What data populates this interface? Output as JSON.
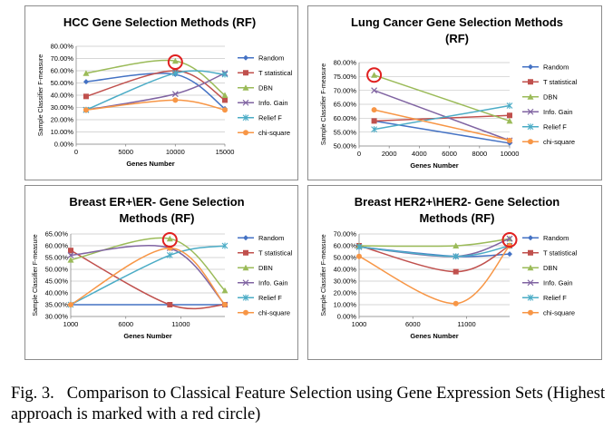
{
  "caption": {
    "label": "Fig. 3.",
    "text": "Comparison to Classical Feature Selection using Gene Expression Sets (Highest approach is marked with a red circle)"
  },
  "colors": {
    "Random": "#4472c4",
    "T statistical": "#c0504d",
    "DBN": "#9bbb59",
    "Info. Gain": "#8064a2",
    "Relief F": "#4bacc6",
    "chi-square": "#f79646",
    "highlight": "#e02020"
  },
  "chart_data": [
    {
      "type": "line",
      "title": "HCC Gene Selection Methods (RF)",
      "xlabel": "Genes Number",
      "ylabel": "Sample Classifier F-measure",
      "xlim": [
        0,
        15000
      ],
      "xticks": [
        0,
        5000,
        10000,
        15000
      ],
      "ylim": [
        0,
        80
      ],
      "yticks": [
        0,
        10,
        20,
        30,
        40,
        50,
        60,
        70,
        80
      ],
      "ytick_format": "percent",
      "x": [
        1000,
        10000,
        15000
      ],
      "series": [
        {
          "name": "Random",
          "marker": "diamond",
          "values": [
            51,
            57,
            29
          ]
        },
        {
          "name": "T statistical",
          "marker": "square",
          "values": [
            39,
            60,
            36
          ]
        },
        {
          "name": "DBN",
          "marker": "triangle",
          "values": [
            58,
            68,
            40
          ]
        },
        {
          "name": "Info. Gain",
          "marker": "x",
          "values": [
            28,
            41,
            58
          ]
        },
        {
          "name": "Relief F",
          "marker": "star",
          "values": [
            28,
            58,
            57
          ]
        },
        {
          "name": "chi-square",
          "marker": "circle",
          "values": [
            28,
            36,
            28
          ]
        }
      ],
      "highlight": {
        "x": 10000,
        "y": 67
      },
      "legend": "right"
    },
    {
      "type": "line",
      "title": "Lung Cancer Gene Selection Methods (RF)",
      "xlabel": "Genes Number",
      "ylabel": "Sample Classifier F-measure",
      "xlim": [
        0,
        10000
      ],
      "xticks": [
        0,
        2000,
        4000,
        6000,
        8000,
        10000
      ],
      "ylim": [
        50,
        80
      ],
      "yticks": [
        50,
        55,
        60,
        65,
        70,
        75,
        80
      ],
      "ytick_format": "percent",
      "x": [
        1000,
        10000
      ],
      "series": [
        {
          "name": "Random",
          "marker": "diamond",
          "values": [
            59,
            51
          ]
        },
        {
          "name": "T statistical",
          "marker": "square",
          "values": [
            59,
            61
          ]
        },
        {
          "name": "DBN",
          "marker": "triangle",
          "values": [
            75.5,
            59
          ]
        },
        {
          "name": "Info. Gain",
          "marker": "x",
          "values": [
            70,
            52
          ]
        },
        {
          "name": "Relief F",
          "marker": "star",
          "values": [
            56,
            64.5
          ]
        },
        {
          "name": "chi-square",
          "marker": "circle",
          "values": [
            63,
            52
          ]
        }
      ],
      "highlight": {
        "x": 1000,
        "y": 75.5
      },
      "legend": "right"
    },
    {
      "type": "line",
      "title": "Breast ER+\\ER- Gene Selection Methods (RF)",
      "xlabel": "Genes Number",
      "ylabel": "Sample Classifier F-measure",
      "xlim": [
        1000,
        15000
      ],
      "xticks": [
        1000,
        6000,
        11000
      ],
      "ylim": [
        30,
        65
      ],
      "yticks": [
        30,
        35,
        40,
        45,
        50,
        55,
        60,
        65
      ],
      "ytick_format": "percent",
      "x": [
        1000,
        10000,
        15000
      ],
      "series": [
        {
          "name": "Random",
          "marker": "diamond",
          "values": [
            35,
            35,
            35
          ]
        },
        {
          "name": "T statistical",
          "marker": "square",
          "values": [
            58,
            35,
            35
          ]
        },
        {
          "name": "DBN",
          "marker": "triangle",
          "values": [
            54,
            63,
            41
          ]
        },
        {
          "name": "Info. Gain",
          "marker": "x",
          "values": [
            56,
            59,
            35
          ]
        },
        {
          "name": "Relief F",
          "marker": "star",
          "values": [
            35,
            56,
            60
          ]
        },
        {
          "name": "chi-square",
          "marker": "circle",
          "values": [
            35,
            59,
            35
          ]
        }
      ],
      "highlight": {
        "x": 10000,
        "y": 62.5
      },
      "legend": "right"
    },
    {
      "type": "line",
      "title": "Breast HER2+\\HER2- Gene Selection Methods (RF)",
      "xlabel": "Genes Number",
      "ylabel": "Sample Classifier F-measure",
      "xlim": [
        1000,
        15000
      ],
      "xticks": [
        1000,
        6000,
        11000
      ],
      "ylim": [
        0,
        70
      ],
      "yticks": [
        0,
        10,
        20,
        30,
        40,
        50,
        60,
        70
      ],
      "ytick_format": "percent",
      "x": [
        1000,
        10000,
        15000
      ],
      "series": [
        {
          "name": "Random",
          "marker": "diamond",
          "values": [
            59,
            51,
            53
          ]
        },
        {
          "name": "T statistical",
          "marker": "square",
          "values": [
            60,
            38,
            60
          ]
        },
        {
          "name": "DBN",
          "marker": "triangle",
          "values": [
            60,
            60,
            66
          ]
        },
        {
          "name": "Info. Gain",
          "marker": "x",
          "values": [
            59,
            51,
            66
          ]
        },
        {
          "name": "Relief F",
          "marker": "star",
          "values": [
            59,
            51,
            60
          ]
        },
        {
          "name": "chi-square",
          "marker": "circle",
          "values": [
            51,
            11,
            60
          ]
        }
      ],
      "highlight": {
        "x": 15000,
        "y": 65
      },
      "legend": "right"
    }
  ]
}
